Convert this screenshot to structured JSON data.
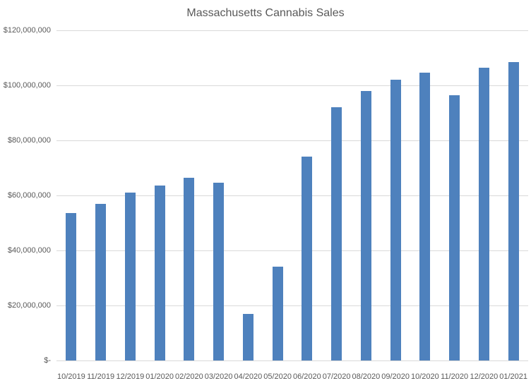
{
  "colors": {
    "bar": "#4E81BD",
    "gridline": "#D9D9D9",
    "axis_text": "#595959",
    "title_text": "#595959",
    "background": "#FFFFFF"
  },
  "chart_data": {
    "type": "bar",
    "title": "Massachusetts Cannabis Sales",
    "xlabel": "",
    "ylabel": "",
    "categories": [
      "10/2019",
      "11/2019",
      "12/2019",
      "01/2020",
      "02/2020",
      "03/2020",
      "04/2020",
      "05/2020",
      "06/2020",
      "07/2020",
      "08/2020",
      "09/2020",
      "10/2020",
      "11/2020",
      "12/2020",
      "01/2021"
    ],
    "values": [
      53500000,
      57000000,
      61000000,
      63500000,
      66500000,
      64500000,
      17000000,
      34000000,
      74000000,
      92000000,
      98000000,
      102000000,
      104500000,
      96500000,
      106500000,
      108500000
    ],
    "ylim": [
      0,
      120000000
    ],
    "ytick_interval": 20000000,
    "ytick_labels": [
      "$-",
      "$20,000,000",
      "$40,000,000",
      "$60,000,000",
      "$80,000,000",
      "$100,000,000",
      "$120,000,000"
    ],
    "grid": true,
    "legend": false,
    "bar_color": "#4E81BD"
  }
}
